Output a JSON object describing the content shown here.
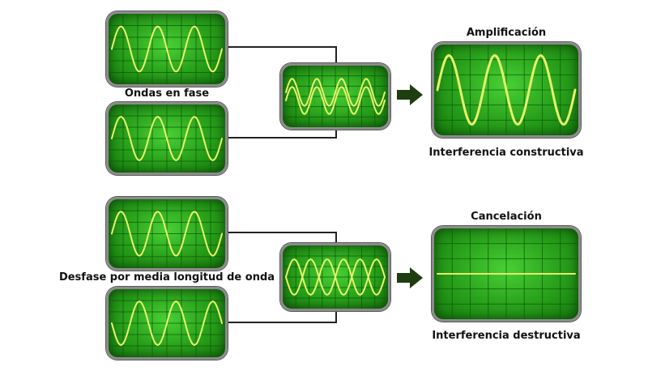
{
  "labels": {
    "top_pair": "Ondas en fase",
    "top_result_title": "Amplificación",
    "top_result_caption": "Interferencia constructiva",
    "bottom_pair": "Desfase por media longitud de onda",
    "bottom_result_title": "Cancelación",
    "bottom_result_caption": "Interferencia destructiva"
  },
  "colors": {
    "wave": "#e6f46a",
    "grid": "#0e5a0a",
    "arrow": "#1f3d10",
    "wire": "#222222"
  },
  "icons": {
    "arrow_top": "arrow-right-icon",
    "arrow_bottom": "arrow-right-icon"
  }
}
